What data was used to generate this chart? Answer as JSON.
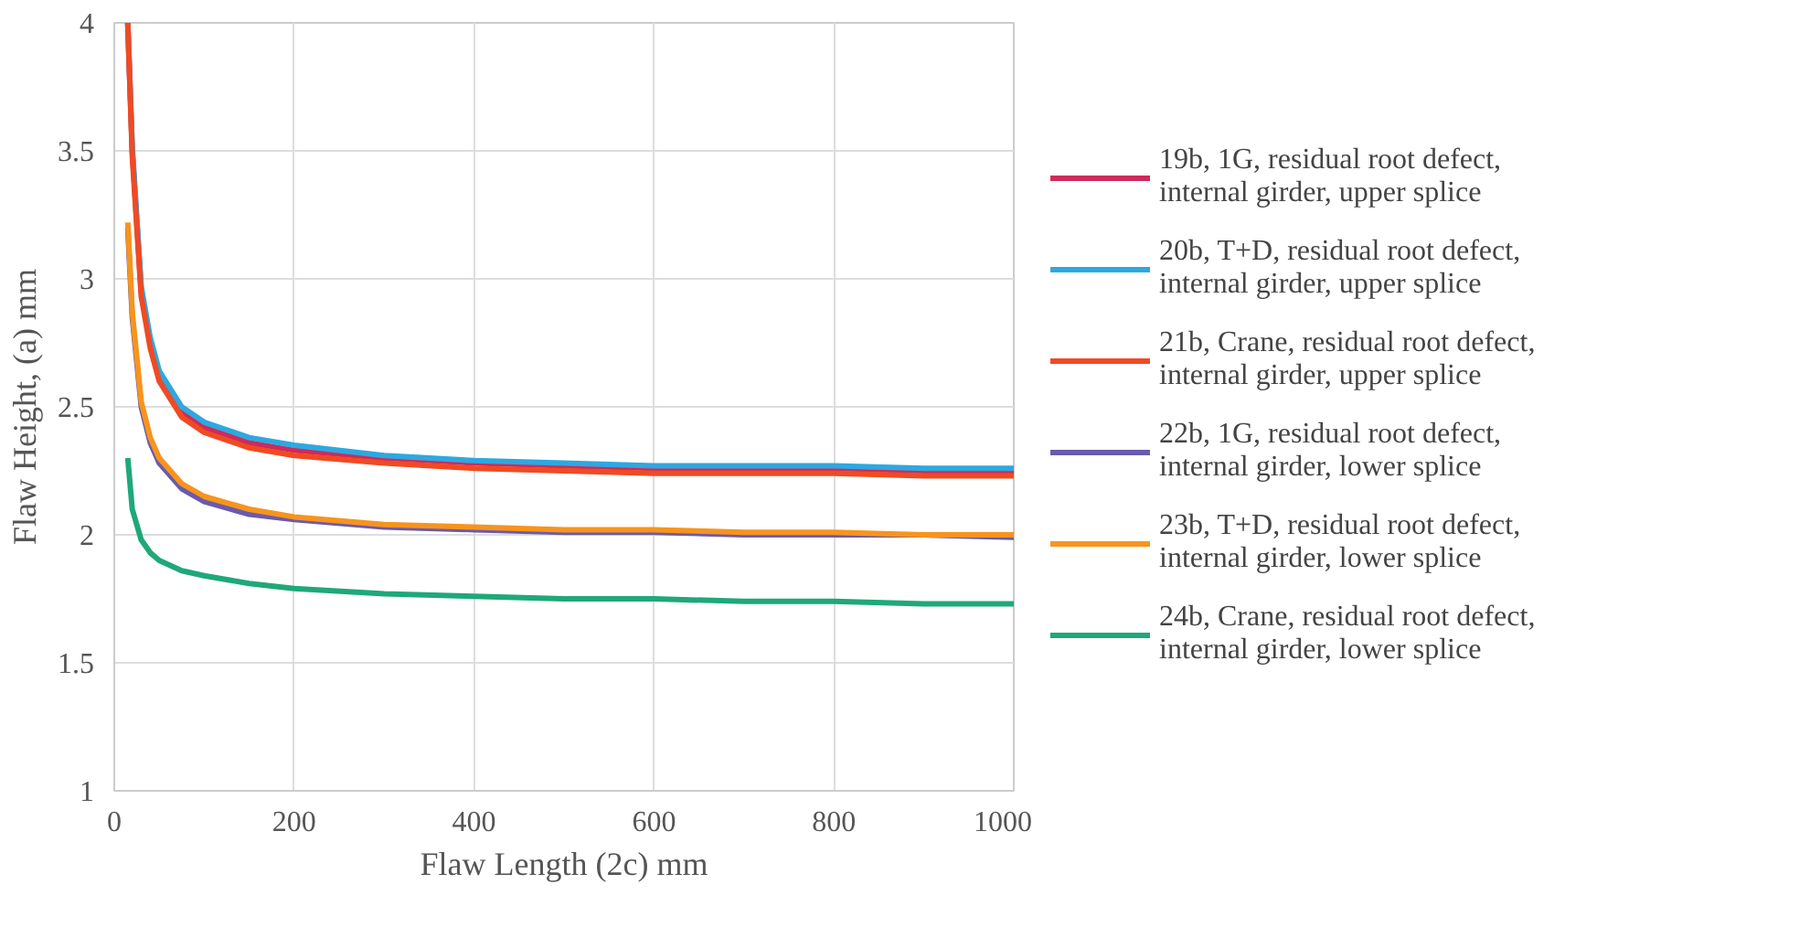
{
  "chart_data": {
    "type": "line",
    "xlabel": "Flaw Length (2c) mm",
    "ylabel": "Flaw Height, (a) mm",
    "x": [
      15,
      20,
      30,
      40,
      50,
      75,
      100,
      150,
      200,
      300,
      400,
      500,
      600,
      700,
      800,
      900,
      1000
    ],
    "series": [
      {
        "name": "19b, 1G, residual root defect, internal girder, upper splice",
        "color": "#d02a5a",
        "values": [
          4.0,
          3.5,
          2.95,
          2.75,
          2.62,
          2.48,
          2.42,
          2.36,
          2.33,
          2.3,
          2.28,
          2.27,
          2.26,
          2.26,
          2.26,
          2.25,
          2.25
        ]
      },
      {
        "name": "20b, T+D, residual root defect, internal girder, upper splice",
        "color": "#2ea8df",
        "values": [
          4.0,
          3.52,
          2.97,
          2.77,
          2.64,
          2.5,
          2.44,
          2.38,
          2.35,
          2.31,
          2.29,
          2.28,
          2.27,
          2.27,
          2.27,
          2.26,
          2.26
        ]
      },
      {
        "name": "21b, Crane, residual root defect, internal girder, upper splice",
        "color": "#f04a23",
        "values": [
          4.0,
          3.48,
          2.93,
          2.73,
          2.6,
          2.46,
          2.4,
          2.34,
          2.31,
          2.28,
          2.26,
          2.25,
          2.24,
          2.24,
          2.24,
          2.23,
          2.23
        ]
      },
      {
        "name": "22b, 1G, residual root defect, internal girder, lower splice",
        "color": "#6a5aad",
        "values": [
          3.2,
          2.85,
          2.5,
          2.36,
          2.28,
          2.18,
          2.13,
          2.08,
          2.06,
          2.03,
          2.02,
          2.01,
          2.01,
          2.0,
          2.0,
          2.0,
          1.99
        ]
      },
      {
        "name": "23b, T+D, residual root defect, internal girder, lower splice",
        "color": "#f7941d",
        "values": [
          3.22,
          2.87,
          2.52,
          2.38,
          2.3,
          2.2,
          2.15,
          2.1,
          2.07,
          2.04,
          2.03,
          2.02,
          2.02,
          2.01,
          2.01,
          2.0,
          2.0
        ]
      },
      {
        "name": "24b, Crane, residual root defect, internal girder, lower splice",
        "color": "#1fa878",
        "values": [
          2.3,
          2.1,
          1.98,
          1.93,
          1.9,
          1.86,
          1.84,
          1.81,
          1.79,
          1.77,
          1.76,
          1.75,
          1.75,
          1.74,
          1.74,
          1.73,
          1.73
        ]
      }
    ],
    "xlim": [
      0,
      1000
    ],
    "ylim": [
      1,
      4
    ],
    "xticks": [
      0,
      200,
      400,
      600,
      800,
      1000
    ],
    "yticks": [
      1,
      {
        "value": 1.5,
        "label": "1.5"
      },
      2,
      {
        "value": 2.5,
        "label": "2.5"
      },
      3,
      {
        "value": 3.5,
        "label": "3.5"
      },
      4
    ],
    "grid": true,
    "legend": "right",
    "marker": "none",
    "line_style": "solid"
  }
}
